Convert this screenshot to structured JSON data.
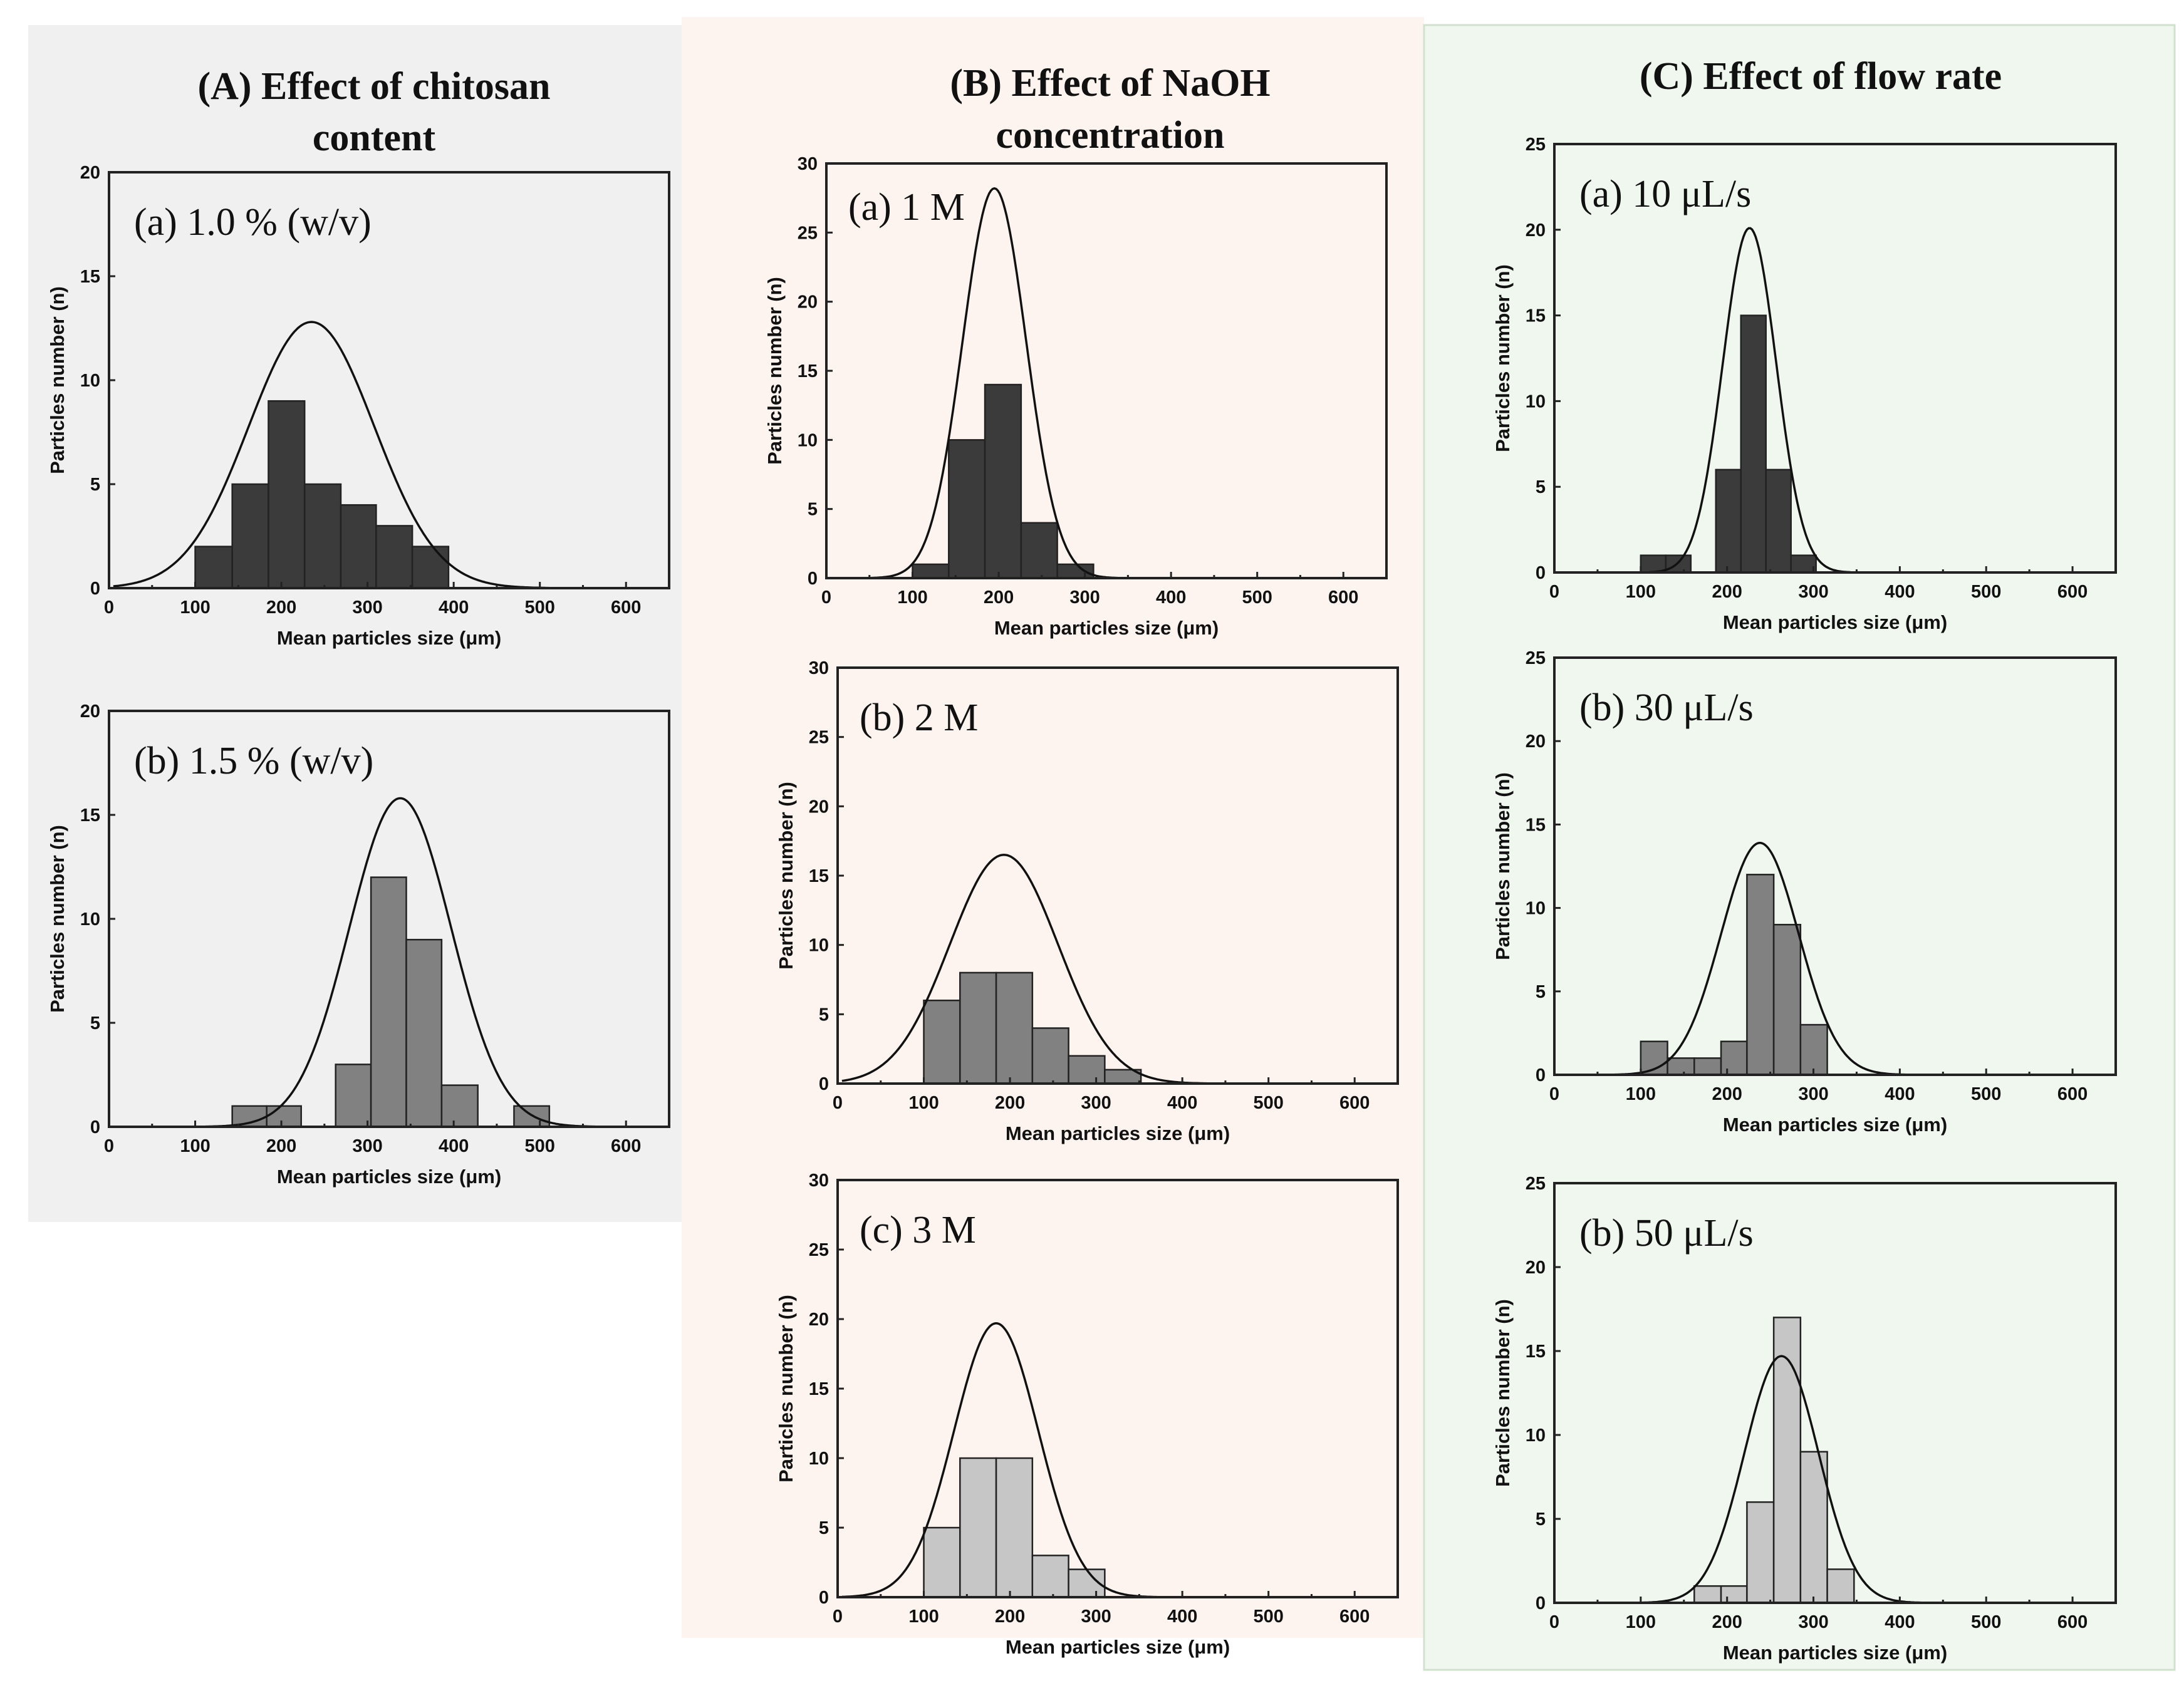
{
  "colors": {
    "dark": "#3b3b3b",
    "mid": "#818181",
    "light": "#c6c6c6",
    "bgA": "#f0f0f0",
    "bgB": "#fdf4ef",
    "bgC": "#f0f7ef",
    "borderC": "#cfe3cc"
  },
  "groups": [
    {
      "title_lines": [
        "(A) Effect of chitosan content"
      ],
      "title_line1": "(A) Effect of chitosan",
      "title_line2": "content"
    },
    {
      "title_line1": "(B) Effect of NaOH",
      "title_line2": "concentration"
    },
    {
      "title_line1": "(C) Effect of flow rate",
      "title_line2": ""
    }
  ],
  "chart_data": [
    {
      "type": "bar",
      "group": "A",
      "label": "(a) 1.0 % (w/v)",
      "fill": "dark",
      "bins": [
        [
          100,
          143,
          2
        ],
        [
          143,
          185,
          5
        ],
        [
          185,
          227,
          9
        ],
        [
          227,
          269,
          5
        ],
        [
          269,
          310,
          4
        ],
        [
          310,
          352,
          3
        ],
        [
          352,
          394,
          2
        ]
      ],
      "fit": {
        "peak": 12.8,
        "mean": 235,
        "sd": 73
      },
      "xlim": [
        0,
        650
      ],
      "ylim": [
        0,
        20
      ],
      "xticks": [
        0,
        100,
        200,
        300,
        400,
        500,
        600
      ],
      "yticks": [
        0,
        5,
        10,
        15,
        20
      ],
      "xlabel": "Mean particles size (μm)",
      "ylabel": "Particles number (n)"
    },
    {
      "type": "bar",
      "group": "A",
      "label": "(b) 1.5 % (w/v)",
      "fill": "mid",
      "bins": [
        [
          143,
          183,
          1
        ],
        [
          183,
          223,
          1
        ],
        [
          263,
          304,
          3
        ],
        [
          304,
          345,
          12
        ],
        [
          345,
          386,
          9
        ],
        [
          386,
          428,
          2
        ],
        [
          470,
          511,
          1
        ]
      ],
      "fit": {
        "peak": 15.8,
        "mean": 338,
        "sd": 59
      },
      "xlim": [
        0,
        650
      ],
      "ylim": [
        0,
        20
      ],
      "xticks": [
        0,
        100,
        200,
        300,
        400,
        500,
        600
      ],
      "yticks": [
        0,
        5,
        10,
        15,
        20
      ],
      "xlabel": "Mean particles size (μm)",
      "ylabel": "Particles number (n)"
    },
    {
      "type": "bar",
      "group": "B",
      "label": "(a) 1 M",
      "fill": "dark",
      "bins": [
        [
          100,
          142,
          1
        ],
        [
          142,
          184,
          10
        ],
        [
          184,
          226,
          14
        ],
        [
          226,
          268,
          4
        ],
        [
          268,
          310,
          1
        ]
      ],
      "fit": {
        "peak": 28.2,
        "mean": 195,
        "sd": 37
      },
      "xlim": [
        0,
        650
      ],
      "ylim": [
        0,
        30
      ],
      "xticks": [
        0,
        100,
        200,
        300,
        400,
        500,
        600
      ],
      "yticks": [
        0,
        5,
        10,
        15,
        20,
        25,
        30
      ],
      "xlabel": "Mean particles size (μm)",
      "ylabel": "Particles number (n)"
    },
    {
      "type": "bar",
      "group": "B",
      "label": "(b) 2 M",
      "fill": "mid",
      "bins": [
        [
          100,
          142,
          6
        ],
        [
          142,
          184,
          8
        ],
        [
          184,
          226,
          8
        ],
        [
          226,
          268,
          4
        ],
        [
          268,
          310,
          2
        ],
        [
          310,
          352,
          1
        ]
      ],
      "fit": {
        "peak": 16.5,
        "mean": 193,
        "sd": 63
      },
      "xlim": [
        0,
        650
      ],
      "ylim": [
        0,
        30
      ],
      "xticks": [
        0,
        100,
        200,
        300,
        400,
        500,
        600
      ],
      "yticks": [
        0,
        5,
        10,
        15,
        20,
        25,
        30
      ],
      "xlabel": "Mean particles size (μm)",
      "ylabel": "Particles number (n)"
    },
    {
      "type": "bar",
      "group": "B",
      "label": "(c) 3 M",
      "fill": "light",
      "bins": [
        [
          100,
          142,
          5
        ],
        [
          142,
          184,
          10
        ],
        [
          184,
          226,
          10
        ],
        [
          226,
          268,
          3
        ],
        [
          268,
          310,
          2
        ]
      ],
      "fit": {
        "peak": 19.7,
        "mean": 184,
        "sd": 49
      },
      "xlim": [
        0,
        650
      ],
      "ylim": [
        0,
        30
      ],
      "xticks": [
        0,
        100,
        200,
        300,
        400,
        500,
        600
      ],
      "yticks": [
        0,
        5,
        10,
        15,
        20,
        25,
        30
      ],
      "xlabel": "Mean particles size (μm)",
      "ylabel": "Particles number (n)"
    },
    {
      "type": "bar",
      "group": "C",
      "label": "(a) 10 μL/s",
      "fill": "dark",
      "bins": [
        [
          100,
          129,
          1
        ],
        [
          129,
          158,
          1
        ],
        [
          187,
          216,
          6
        ],
        [
          216,
          245,
          15
        ],
        [
          245,
          274,
          6
        ],
        [
          274,
          303,
          1
        ]
      ],
      "fit": {
        "peak": 20.1,
        "mean": 226,
        "sd": 31
      },
      "xlim": [
        0,
        650
      ],
      "ylim": [
        0,
        25
      ],
      "xticks": [
        0,
        100,
        200,
        300,
        400,
        500,
        600
      ],
      "yticks": [
        0,
        5,
        10,
        15,
        20,
        25
      ],
      "xlabel": "Mean particles size (μm)",
      "ylabel": "Particles number (n)"
    },
    {
      "type": "bar",
      "group": "C",
      "label": "(b) 30 μL/s",
      "fill": "mid",
      "bins": [
        [
          100,
          131,
          2
        ],
        [
          131,
          162,
          1
        ],
        [
          162,
          193,
          1
        ],
        [
          193,
          223,
          2
        ],
        [
          223,
          254,
          12
        ],
        [
          254,
          285,
          9
        ],
        [
          285,
          316,
          3
        ]
      ],
      "fit": {
        "peak": 13.9,
        "mean": 238,
        "sd": 45
      },
      "xlim": [
        0,
        650
      ],
      "ylim": [
        0,
        25
      ],
      "xticks": [
        0,
        100,
        200,
        300,
        400,
        500,
        600
      ],
      "yticks": [
        0,
        5,
        10,
        15,
        20,
        25
      ],
      "xlabel": "Mean particles size (μm)",
      "ylabel": "Particles number (n)"
    },
    {
      "type": "bar",
      "group": "C",
      "label": "(b) 50 μL/s",
      "fill": "light",
      "bins": [
        [
          162,
          193,
          1
        ],
        [
          193,
          223,
          1
        ],
        [
          223,
          254,
          6
        ],
        [
          254,
          285,
          17
        ],
        [
          285,
          316,
          9
        ],
        [
          316,
          347,
          2
        ]
      ],
      "fit": {
        "peak": 14.7,
        "mean": 263,
        "sd": 43
      },
      "xlim": [
        0,
        650
      ],
      "ylim": [
        0,
        25
      ],
      "xticks": [
        0,
        100,
        200,
        300,
        400,
        500,
        600
      ],
      "yticks": [
        0,
        5,
        10,
        15,
        20,
        25
      ],
      "xlabel": "Mean particles size (μm)",
      "ylabel": "Particles number (n)"
    }
  ]
}
